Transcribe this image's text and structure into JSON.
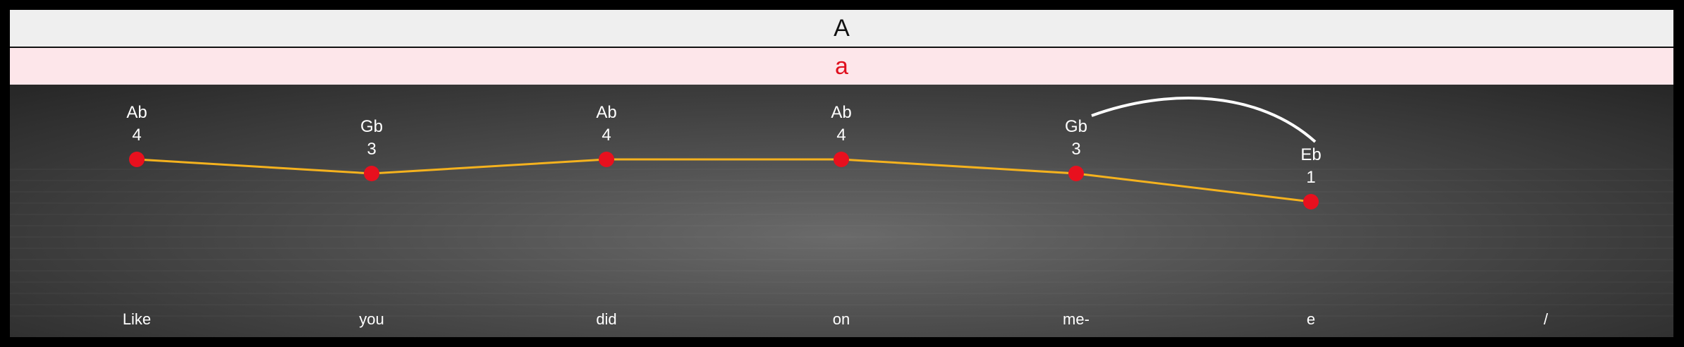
{
  "section": {
    "label": "A"
  },
  "phrase": {
    "label": "a"
  },
  "colors": {
    "line": "#f5b21e",
    "dot": "#e8101e",
    "section_bg": "#efefef",
    "phrase_bg": "#fde6ea",
    "phrase_text": "#e0101e"
  },
  "melody": {
    "notes": [
      {
        "note": "Ab",
        "degree": "4",
        "lyric": "Like"
      },
      {
        "note": "Gb",
        "degree": "3",
        "lyric": "you"
      },
      {
        "note": "Ab",
        "degree": "4",
        "lyric": "did"
      },
      {
        "note": "Ab",
        "degree": "4",
        "lyric": "on"
      },
      {
        "note": "Gb",
        "degree": "3",
        "lyric": "me-"
      },
      {
        "note": "Eb",
        "degree": "1",
        "lyric": "e"
      }
    ],
    "trailing_lyric": "/",
    "slur": {
      "from_index": 4,
      "to_index": 5
    }
  }
}
